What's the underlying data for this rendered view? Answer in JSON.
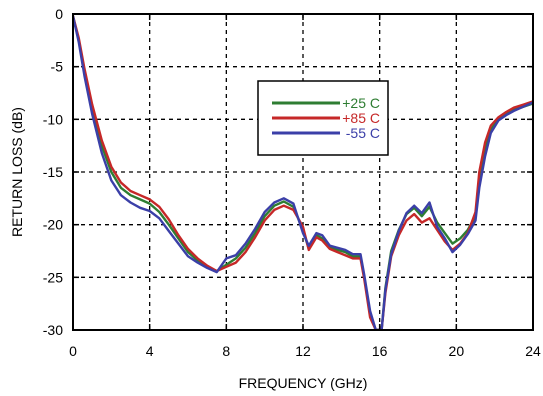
{
  "chart_data": {
    "type": "line",
    "title": "",
    "xlabel": "FREQUENCY (GHz)",
    "ylabel": "RETURN LOSS (dB)",
    "xlim": [
      0,
      24
    ],
    "ylim": [
      -30,
      0
    ],
    "xticks": [
      0,
      4,
      8,
      12,
      16,
      20,
      24
    ],
    "yticks": [
      0,
      -5,
      -10,
      -15,
      -20,
      -25,
      -30
    ],
    "grid": true,
    "grid_style": "dashed",
    "legend_position": "upper-center-right",
    "series": [
      {
        "name": "+25 C",
        "color": "#2e7d32",
        "points": [
          [
            0.0,
            -0.2
          ],
          [
            0.3,
            -2.5
          ],
          [
            0.6,
            -5.5
          ],
          [
            1.0,
            -9.0
          ],
          [
            1.5,
            -12.5
          ],
          [
            2.0,
            -15.0
          ],
          [
            2.5,
            -16.5
          ],
          [
            3.0,
            -17.2
          ],
          [
            3.5,
            -17.6
          ],
          [
            4.0,
            -18.0
          ],
          [
            4.5,
            -18.8
          ],
          [
            5.0,
            -20.0
          ],
          [
            5.5,
            -21.3
          ],
          [
            6.0,
            -22.6
          ],
          [
            6.5,
            -23.4
          ],
          [
            7.0,
            -24.0
          ],
          [
            7.5,
            -24.4
          ],
          [
            8.0,
            -23.8
          ],
          [
            8.5,
            -23.2
          ],
          [
            9.0,
            -22.2
          ],
          [
            9.5,
            -20.8
          ],
          [
            10.0,
            -19.2
          ],
          [
            10.5,
            -18.2
          ],
          [
            11.0,
            -17.8
          ],
          [
            11.5,
            -18.3
          ],
          [
            12.0,
            -20.5
          ],
          [
            12.3,
            -22.3
          ],
          [
            12.7,
            -21.0
          ],
          [
            13.0,
            -21.3
          ],
          [
            13.4,
            -22.2
          ],
          [
            13.8,
            -22.4
          ],
          [
            14.2,
            -22.6
          ],
          [
            14.6,
            -23.0
          ],
          [
            15.0,
            -23.0
          ],
          [
            15.2,
            -25.0
          ],
          [
            15.5,
            -28.5
          ],
          [
            15.8,
            -30.0
          ],
          [
            16.1,
            -30.0
          ],
          [
            16.3,
            -26.0
          ],
          [
            16.6,
            -22.5
          ],
          [
            17.0,
            -20.5
          ],
          [
            17.4,
            -19.0
          ],
          [
            17.8,
            -18.4
          ],
          [
            18.2,
            -19.2
          ],
          [
            18.6,
            -18.3
          ],
          [
            19.0,
            -19.8
          ],
          [
            19.4,
            -20.8
          ],
          [
            19.8,
            -21.8
          ],
          [
            20.2,
            -21.3
          ],
          [
            20.6,
            -20.5
          ],
          [
            21.0,
            -19.2
          ],
          [
            21.2,
            -15.5
          ],
          [
            21.5,
            -12.8
          ],
          [
            21.8,
            -11.0
          ],
          [
            22.2,
            -9.9
          ],
          [
            22.6,
            -9.5
          ],
          [
            23.0,
            -9.1
          ],
          [
            23.5,
            -8.8
          ],
          [
            24.0,
            -8.5
          ]
        ]
      },
      {
        "name": "+85 C",
        "color": "#c62828",
        "points": [
          [
            0.0,
            -0.2
          ],
          [
            0.3,
            -2.3
          ],
          [
            0.6,
            -5.2
          ],
          [
            1.0,
            -8.6
          ],
          [
            1.5,
            -12.0
          ],
          [
            2.0,
            -14.5
          ],
          [
            2.5,
            -16.0
          ],
          [
            3.0,
            -16.8
          ],
          [
            3.5,
            -17.2
          ],
          [
            4.0,
            -17.6
          ],
          [
            4.5,
            -18.3
          ],
          [
            5.0,
            -19.5
          ],
          [
            5.5,
            -21.0
          ],
          [
            6.0,
            -22.3
          ],
          [
            6.5,
            -23.2
          ],
          [
            7.0,
            -23.9
          ],
          [
            7.5,
            -24.4
          ],
          [
            8.0,
            -24.0
          ],
          [
            8.5,
            -23.6
          ],
          [
            9.0,
            -22.6
          ],
          [
            9.5,
            -21.2
          ],
          [
            10.0,
            -19.6
          ],
          [
            10.5,
            -18.6
          ],
          [
            11.0,
            -18.2
          ],
          [
            11.5,
            -18.6
          ],
          [
            12.0,
            -20.2
          ],
          [
            12.3,
            -22.4
          ],
          [
            12.7,
            -21.2
          ],
          [
            13.0,
            -21.5
          ],
          [
            13.4,
            -22.3
          ],
          [
            13.8,
            -22.6
          ],
          [
            14.2,
            -22.9
          ],
          [
            14.6,
            -23.2
          ],
          [
            15.0,
            -23.2
          ],
          [
            15.2,
            -25.2
          ],
          [
            15.5,
            -28.8
          ],
          [
            15.8,
            -30.0
          ],
          [
            16.1,
            -30.0
          ],
          [
            16.3,
            -26.5
          ],
          [
            16.6,
            -23.0
          ],
          [
            17.0,
            -21.0
          ],
          [
            17.4,
            -19.6
          ],
          [
            17.8,
            -19.0
          ],
          [
            18.2,
            -19.8
          ],
          [
            18.6,
            -19.4
          ],
          [
            19.0,
            -20.5
          ],
          [
            19.4,
            -21.6
          ],
          [
            19.8,
            -22.4
          ],
          [
            20.2,
            -21.8
          ],
          [
            20.6,
            -20.8
          ],
          [
            21.0,
            -18.8
          ],
          [
            21.2,
            -15.0
          ],
          [
            21.5,
            -12.2
          ],
          [
            21.8,
            -10.6
          ],
          [
            22.2,
            -9.8
          ],
          [
            22.6,
            -9.3
          ],
          [
            23.0,
            -8.9
          ],
          [
            23.5,
            -8.6
          ],
          [
            24.0,
            -8.3
          ]
        ]
      },
      {
        "name": "-55 C",
        "color": "#3b3fa8",
        "points": [
          [
            0.0,
            -0.2
          ],
          [
            0.3,
            -2.7
          ],
          [
            0.6,
            -5.9
          ],
          [
            1.0,
            -9.5
          ],
          [
            1.5,
            -13.2
          ],
          [
            2.0,
            -15.8
          ],
          [
            2.5,
            -17.2
          ],
          [
            3.0,
            -17.9
          ],
          [
            3.5,
            -18.4
          ],
          [
            4.0,
            -18.7
          ],
          [
            4.5,
            -19.4
          ],
          [
            5.0,
            -20.6
          ],
          [
            5.5,
            -21.8
          ],
          [
            6.0,
            -23.0
          ],
          [
            6.5,
            -23.6
          ],
          [
            7.0,
            -24.1
          ],
          [
            7.5,
            -24.5
          ],
          [
            8.0,
            -23.2
          ],
          [
            8.5,
            -22.9
          ],
          [
            9.0,
            -21.8
          ],
          [
            9.5,
            -20.4
          ],
          [
            10.0,
            -18.8
          ],
          [
            10.5,
            -17.9
          ],
          [
            11.0,
            -17.5
          ],
          [
            11.5,
            -18.0
          ],
          [
            12.0,
            -20.8
          ],
          [
            12.3,
            -22.0
          ],
          [
            12.7,
            -20.8
          ],
          [
            13.0,
            -21.0
          ],
          [
            13.4,
            -22.0
          ],
          [
            13.8,
            -22.2
          ],
          [
            14.2,
            -22.4
          ],
          [
            14.6,
            -22.8
          ],
          [
            15.0,
            -22.8
          ],
          [
            15.2,
            -24.8
          ],
          [
            15.5,
            -28.2
          ],
          [
            15.8,
            -30.0
          ],
          [
            16.1,
            -30.0
          ],
          [
            16.3,
            -26.2
          ],
          [
            16.6,
            -22.8
          ],
          [
            17.0,
            -20.6
          ],
          [
            17.4,
            -18.9
          ],
          [
            17.8,
            -18.2
          ],
          [
            18.2,
            -18.9
          ],
          [
            18.6,
            -17.9
          ],
          [
            19.0,
            -20.2
          ],
          [
            19.4,
            -21.3
          ],
          [
            19.8,
            -22.6
          ],
          [
            20.2,
            -21.9
          ],
          [
            20.6,
            -20.9
          ],
          [
            21.0,
            -19.6
          ],
          [
            21.2,
            -16.5
          ],
          [
            21.5,
            -13.5
          ],
          [
            21.8,
            -11.3
          ],
          [
            22.2,
            -10.1
          ],
          [
            22.6,
            -9.6
          ],
          [
            23.0,
            -9.2
          ],
          [
            23.5,
            -8.8
          ],
          [
            24.0,
            -8.4
          ]
        ]
      }
    ]
  }
}
